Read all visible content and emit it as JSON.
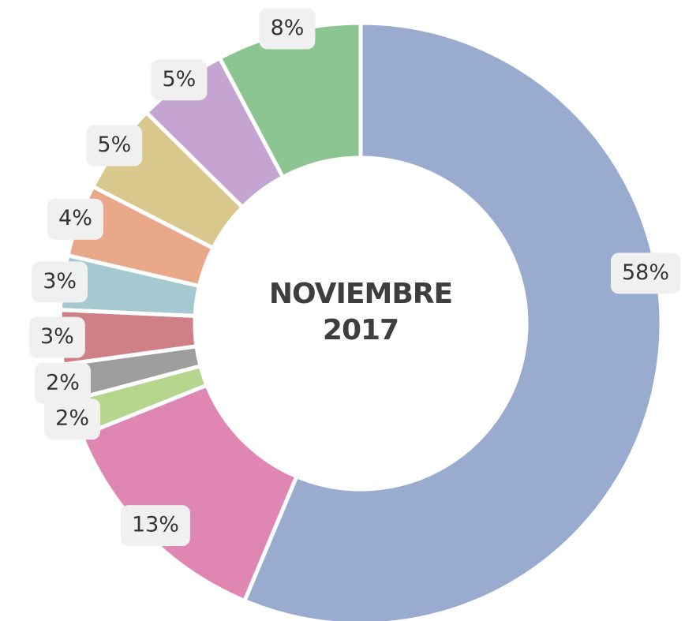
{
  "chart_data": {
    "type": "donut",
    "title": "NOVIEMBRE 2017",
    "values": [
      58,
      13,
      2,
      2,
      3,
      3,
      4,
      5,
      5,
      8
    ],
    "value_labels": [
      "58%",
      "13%",
      "2%",
      "2%",
      "3%",
      "3%",
      "4%",
      "5%",
      "5%",
      "8%"
    ],
    "colors": [
      "#9aabd0",
      "#e086b2",
      "#b5d68c",
      "#9e9e9e",
      "#cf7f86",
      "#a6c9d1",
      "#e9a889",
      "#d8c88c",
      "#c4a5d2",
      "#8dc592"
    ]
  }
}
